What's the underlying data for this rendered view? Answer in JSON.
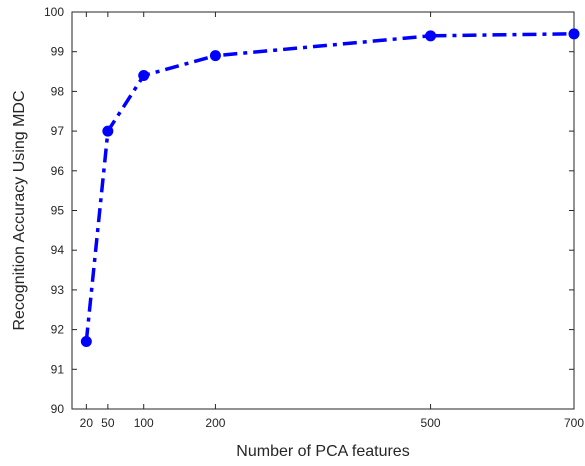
{
  "chart_data": {
    "type": "line",
    "xlabel": "Number of PCA features",
    "ylabel": "Recognition Accuracy Using MDC",
    "xlim": [
      0,
      700
    ],
    "ylim": [
      90,
      100
    ],
    "xticks": [
      20,
      50,
      100,
      200,
      500,
      700
    ],
    "xtick_labels": [
      "20",
      "50",
      "100",
      "200",
      "500",
      "700"
    ],
    "yticks": [
      90,
      91,
      92,
      93,
      94,
      95,
      96,
      97,
      98,
      99,
      100
    ],
    "ytick_labels": [
      "90",
      "91",
      "92",
      "93",
      "94",
      "95",
      "96",
      "97",
      "98",
      "99",
      "100"
    ],
    "grid": false,
    "box": true,
    "series": [
      {
        "x": [
          20,
          50,
          100,
          200,
          500,
          700
        ],
        "values": [
          91.7,
          97.0,
          98.4,
          98.9,
          99.4,
          99.45
        ],
        "color": "#0000ff",
        "line_style": "dash-dot",
        "marker": "filled-circle"
      }
    ]
  }
}
